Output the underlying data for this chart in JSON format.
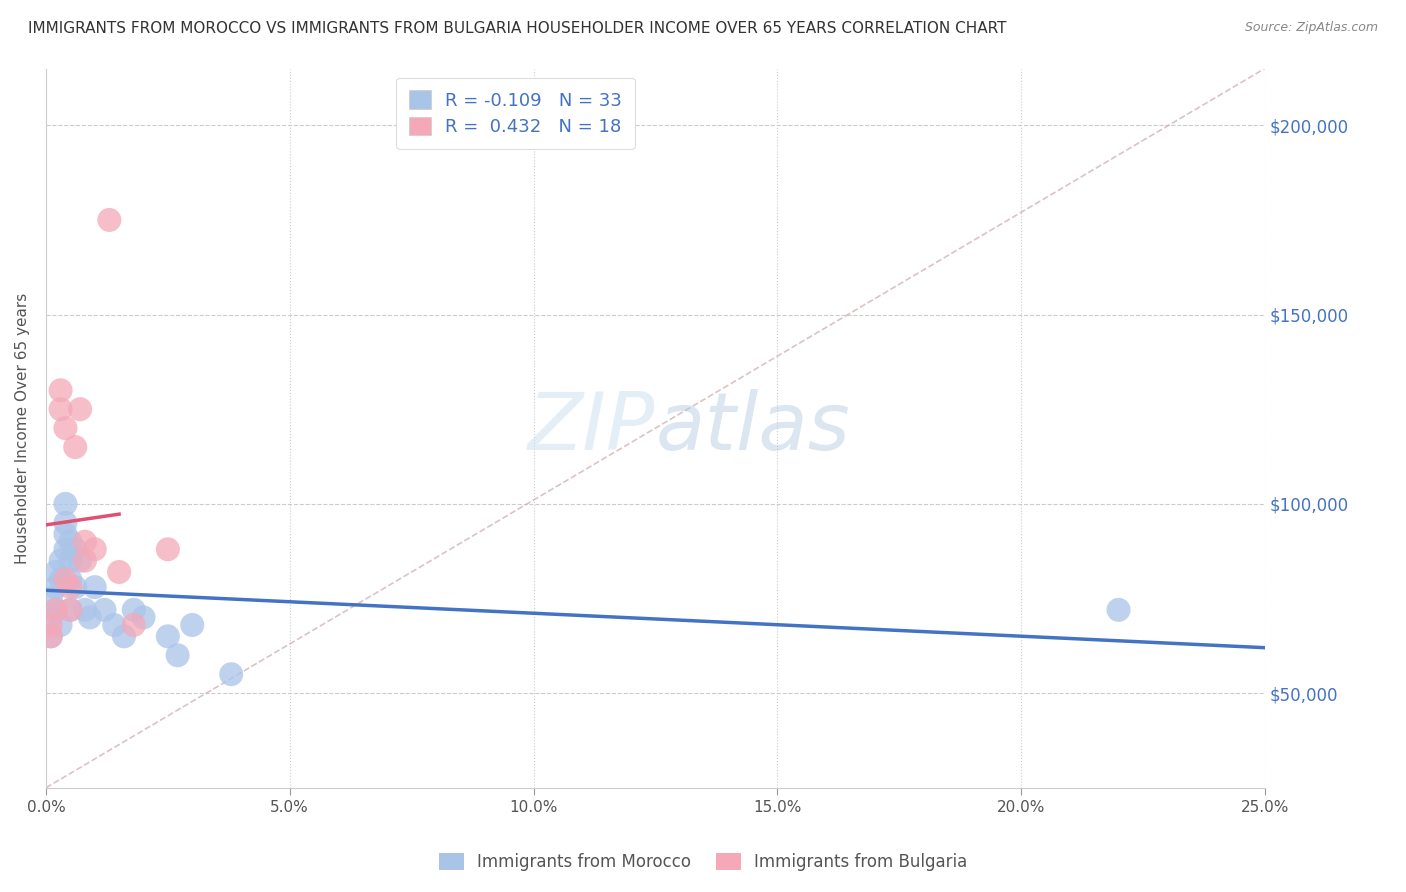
{
  "title": "IMMIGRANTS FROM MOROCCO VS IMMIGRANTS FROM BULGARIA HOUSEHOLDER INCOME OVER 65 YEARS CORRELATION CHART",
  "source": "Source: ZipAtlas.com",
  "ylabel": "Householder Income Over 65 years",
  "xlim": [
    0.0,
    0.25
  ],
  "ylim": [
    25000,
    215000
  ],
  "yticks": [
    50000,
    100000,
    150000,
    200000
  ],
  "ytick_labels": [
    "$50,000",
    "$100,000",
    "$150,000",
    "$200,000"
  ],
  "xtick_labels": [
    "0.0%",
    "5.0%",
    "10.0%",
    "15.0%",
    "20.0%",
    "25.0%"
  ],
  "xticks": [
    0.0,
    0.05,
    0.1,
    0.15,
    0.2,
    0.25
  ],
  "legend_r_morocco": "-0.109",
  "legend_n_morocco": "33",
  "legend_r_bulgaria": "0.432",
  "legend_n_bulgaria": "18",
  "color_morocco": "#aac4e8",
  "color_bulgaria": "#f4a8b8",
  "line_color_morocco": "#4472c4",
  "line_color_bulgaria": "#e05070",
  "background_color": "#ffffff",
  "grid_color": "#cccccc",
  "morocco_x": [
    0.001,
    0.001,
    0.001,
    0.002,
    0.002,
    0.002,
    0.003,
    0.003,
    0.003,
    0.004,
    0.004,
    0.004,
    0.004,
    0.005,
    0.005,
    0.005,
    0.005,
    0.006,
    0.006,
    0.007,
    0.008,
    0.009,
    0.01,
    0.012,
    0.014,
    0.016,
    0.018,
    0.02,
    0.025,
    0.027,
    0.03,
    0.038,
    0.22
  ],
  "morocco_y": [
    75000,
    70000,
    65000,
    78000,
    82000,
    72000,
    85000,
    80000,
    68000,
    92000,
    88000,
    95000,
    100000,
    90000,
    85000,
    80000,
    72000,
    88000,
    78000,
    85000,
    72000,
    70000,
    78000,
    72000,
    68000,
    65000,
    72000,
    70000,
    65000,
    60000,
    68000,
    55000,
    72000
  ],
  "bulgaria_x": [
    0.001,
    0.001,
    0.002,
    0.003,
    0.003,
    0.004,
    0.004,
    0.005,
    0.005,
    0.006,
    0.007,
    0.008,
    0.008,
    0.01,
    0.013,
    0.015,
    0.018,
    0.025
  ],
  "bulgaria_y": [
    68000,
    65000,
    72000,
    130000,
    125000,
    120000,
    80000,
    78000,
    72000,
    115000,
    125000,
    90000,
    85000,
    88000,
    175000,
    82000,
    68000,
    88000
  ]
}
